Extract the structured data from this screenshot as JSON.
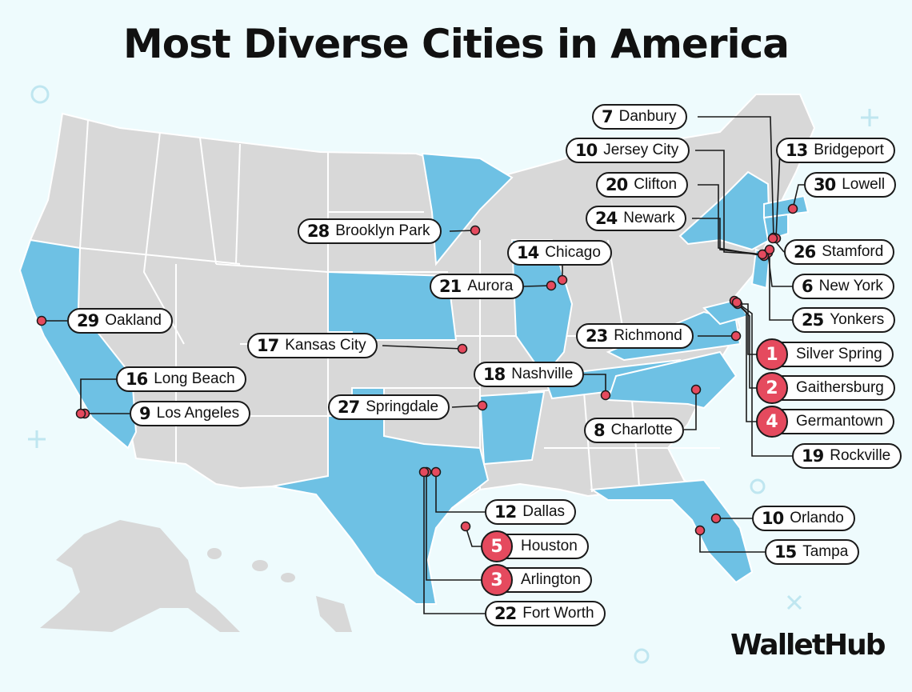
{
  "title": "Most Diverse Cities in America",
  "brand": "WalletHub",
  "colors": {
    "background": "#eefbfd",
    "highlight_state": "#6ec1e4",
    "other_state": "#d8d8d8",
    "dot": "#e54a5e",
    "top_badge": "#e54a5e"
  },
  "cities": [
    {
      "rank": "1",
      "name": "Silver Spring",
      "top": true
    },
    {
      "rank": "2",
      "name": "Gaithersburg",
      "top": true
    },
    {
      "rank": "3",
      "name": "Arlington",
      "top": true
    },
    {
      "rank": "4",
      "name": "Germantown",
      "top": true
    },
    {
      "rank": "5",
      "name": "Houston",
      "top": true
    },
    {
      "rank": "6",
      "name": "New York"
    },
    {
      "rank": "7",
      "name": "Danbury"
    },
    {
      "rank": "8",
      "name": "Charlotte"
    },
    {
      "rank": "9",
      "name": "Los Angeles"
    },
    {
      "rank": "10",
      "name": "Jersey City"
    },
    {
      "rank": "10",
      "name": "Orlando"
    },
    {
      "rank": "12",
      "name": "Dallas"
    },
    {
      "rank": "13",
      "name": "Bridgeport"
    },
    {
      "rank": "14",
      "name": "Chicago"
    },
    {
      "rank": "15",
      "name": "Tampa"
    },
    {
      "rank": "16",
      "name": "Long Beach"
    },
    {
      "rank": "17",
      "name": "Kansas City"
    },
    {
      "rank": "18",
      "name": "Nashville"
    },
    {
      "rank": "19",
      "name": "Rockville"
    },
    {
      "rank": "20",
      "name": "Clifton"
    },
    {
      "rank": "21",
      "name": "Aurora"
    },
    {
      "rank": "22",
      "name": "Fort Worth"
    },
    {
      "rank": "23",
      "name": "Richmond"
    },
    {
      "rank": "24",
      "name": "Newark"
    },
    {
      "rank": "25",
      "name": "Yonkers"
    },
    {
      "rank": "26",
      "name": "Stamford"
    },
    {
      "rank": "27",
      "name": "Springdale"
    },
    {
      "rank": "28",
      "name": "Brooklyn Park"
    },
    {
      "rank": "29",
      "name": "Oakland"
    },
    {
      "rank": "30",
      "name": "Lowell"
    }
  ]
}
